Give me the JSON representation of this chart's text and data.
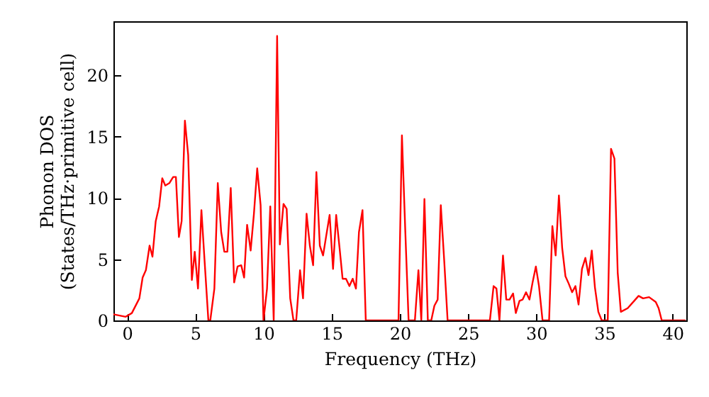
{
  "chart_data": {
    "type": "line",
    "xlabel": "Frequency (THz)",
    "ylabel": "Phonon DOS\n(States/THz·primitive cell)",
    "xlim": [
      -1,
      41
    ],
    "ylim": [
      0,
      24.4
    ],
    "xticks": [
      0,
      5,
      10,
      15,
      20,
      25,
      30,
      35,
      40
    ],
    "yticks": [
      0,
      5,
      10,
      15,
      20
    ],
    "grid": false,
    "marker": "none",
    "line_style": "solid",
    "series": [
      {
        "color": "#ff0000",
        "x": [
          -1.0,
          -0.1,
          0.35,
          0.9,
          1.14,
          1.38,
          1.65,
          1.86,
          2.1,
          2.35,
          2.58,
          2.8,
          3.1,
          3.38,
          3.58,
          3.8,
          4.0,
          4.24,
          4.48,
          4.75,
          4.96,
          5.2,
          5.45,
          5.68,
          5.96,
          6.1,
          6.4,
          6.65,
          6.9,
          7.13,
          7.35,
          7.6,
          7.85,
          8.1,
          8.37,
          8.58,
          8.8,
          9.06,
          9.3,
          9.54,
          9.79,
          10.0,
          10.26,
          10.5,
          10.75,
          11.0,
          11.2,
          11.47,
          11.7,
          11.96,
          12.2,
          12.4,
          12.68,
          12.9,
          13.16,
          13.4,
          13.64,
          13.88,
          14.13,
          14.37,
          14.6,
          14.85,
          15.1,
          15.33,
          15.57,
          15.8,
          16.05,
          16.3,
          16.54,
          16.78,
          17.0,
          17.26,
          17.5,
          19.9,
          20.15,
          20.4,
          20.64,
          21.1,
          21.36,
          21.57,
          21.8,
          22.05,
          22.3,
          22.53,
          22.77,
          23.0,
          23.26,
          23.5,
          26.6,
          26.87,
          27.08,
          27.3,
          27.56,
          27.8,
          28.04,
          28.3,
          28.5,
          28.77,
          29.0,
          29.25,
          29.5,
          29.73,
          29.97,
          30.2,
          30.46,
          30.94,
          31.18,
          31.42,
          31.66,
          31.9,
          32.14,
          32.38,
          32.63,
          32.87,
          33.1,
          33.35,
          33.6,
          33.83,
          34.07,
          34.3,
          34.55,
          34.8,
          35.24,
          35.48,
          35.73,
          35.97,
          36.2,
          36.7,
          37.18,
          37.5,
          37.83,
          38.27,
          38.76,
          38.97,
          39.2,
          40.9
        ],
        "values": [
          0.5,
          0.3,
          0.6,
          1.8,
          3.5,
          4.1,
          6.1,
          5.2,
          8.1,
          9.3,
          11.6,
          11.0,
          11.2,
          11.7,
          11.7,
          6.8,
          8.1,
          16.3,
          13.5,
          3.3,
          5.6,
          2.6,
          9.0,
          4.9,
          0,
          0,
          2.6,
          11.2,
          7.2,
          5.6,
          5.6,
          10.8,
          3.1,
          4.4,
          4.5,
          3.5,
          7.8,
          5.7,
          8.7,
          12.4,
          9.4,
          0,
          2.6,
          9.3,
          0,
          23.2,
          6.2,
          9.5,
          9.1,
          1.8,
          0,
          0,
          4.1,
          1.8,
          8.7,
          6.1,
          4.5,
          12.1,
          6.1,
          5.3,
          6.9,
          8.6,
          4.2,
          8.6,
          6.0,
          3.4,
          3.4,
          2.8,
          3.4,
          2.6,
          7.2,
          9.0,
          0,
          0,
          15.1,
          7.2,
          0,
          0,
          4.1,
          0,
          9.9,
          0,
          0,
          1.2,
          1.7,
          9.4,
          4.7,
          0,
          0,
          2.8,
          2.6,
          0,
          5.3,
          1.7,
          1.7,
          2.2,
          0.6,
          1.6,
          1.7,
          2.3,
          1.7,
          3.1,
          4.4,
          2.8,
          0,
          0,
          7.7,
          5.3,
          10.2,
          5.9,
          3.6,
          3.0,
          2.3,
          2.8,
          1.3,
          4.2,
          5.1,
          3.7,
          5.7,
          2.7,
          0.7,
          0,
          0,
          14.0,
          13.2,
          3.9,
          0.7,
          1.0,
          1.6,
          2.0,
          1.8,
          1.9,
          1.5,
          1.0,
          0,
          0
        ]
      }
    ]
  }
}
